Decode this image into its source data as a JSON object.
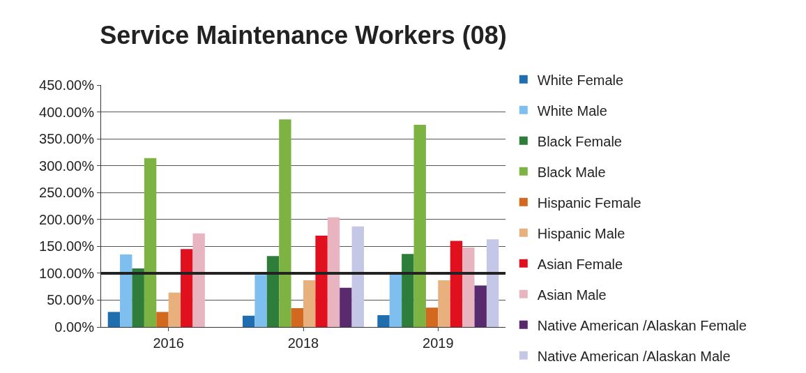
{
  "chart_data": {
    "type": "bar",
    "title": "Service Maintenance Workers (08)",
    "categories": [
      "2016",
      "2018",
      "2019"
    ],
    "series": [
      {
        "name": "White Female",
        "color": "#1f6fb0",
        "values": [
          28,
          21,
          22
        ]
      },
      {
        "name": "White Male",
        "color": "#7fbff0",
        "values": [
          135,
          97,
          98
        ]
      },
      {
        "name": "Black Female",
        "color": "#2e7d3a",
        "values": [
          109,
          132,
          136
        ]
      },
      {
        "name": "Black Male",
        "color": "#7cb342",
        "values": [
          314,
          386,
          376
        ]
      },
      {
        "name": "Hispanic Female",
        "color": "#d2691e",
        "values": [
          28,
          35,
          36
        ]
      },
      {
        "name": "Hispanic Male",
        "color": "#e8b07c",
        "values": [
          64,
          87,
          87
        ]
      },
      {
        "name": "Asian Female",
        "color": "#e0101f",
        "values": [
          145,
          170,
          160
        ]
      },
      {
        "name": "Asian Male",
        "color": "#e8b4c0",
        "values": [
          174,
          204,
          148
        ]
      },
      {
        "name": "Native American /Alaskan Female",
        "color": "#5a2a6e",
        "values": [
          null,
          73,
          77
        ]
      },
      {
        "name": "Native American /Alaskan Male",
        "color": "#c4c8e6",
        "values": [
          null,
          187,
          163
        ]
      }
    ],
    "ylim": [
      0,
      450
    ],
    "yticks": [
      {
        "value": 0,
        "label": "0.00%"
      },
      {
        "value": 50,
        "label": "50.00%"
      },
      {
        "value": 100,
        "label": "100.00%"
      },
      {
        "value": 150,
        "label": "150.00%"
      },
      {
        "value": 200,
        "label": "200.00%"
      },
      {
        "value": 250,
        "label": "250.00%"
      },
      {
        "value": 300,
        "label": "300.00%"
      },
      {
        "value": 350,
        "label": "350.00%"
      },
      {
        "value": 400,
        "label": "400.00%"
      },
      {
        "value": 450,
        "label": "450.00%"
      }
    ],
    "ref_lines": [
      {
        "axis": "y",
        "value": 100,
        "color": "#222222"
      }
    ],
    "grid": "y",
    "legend": "right"
  }
}
